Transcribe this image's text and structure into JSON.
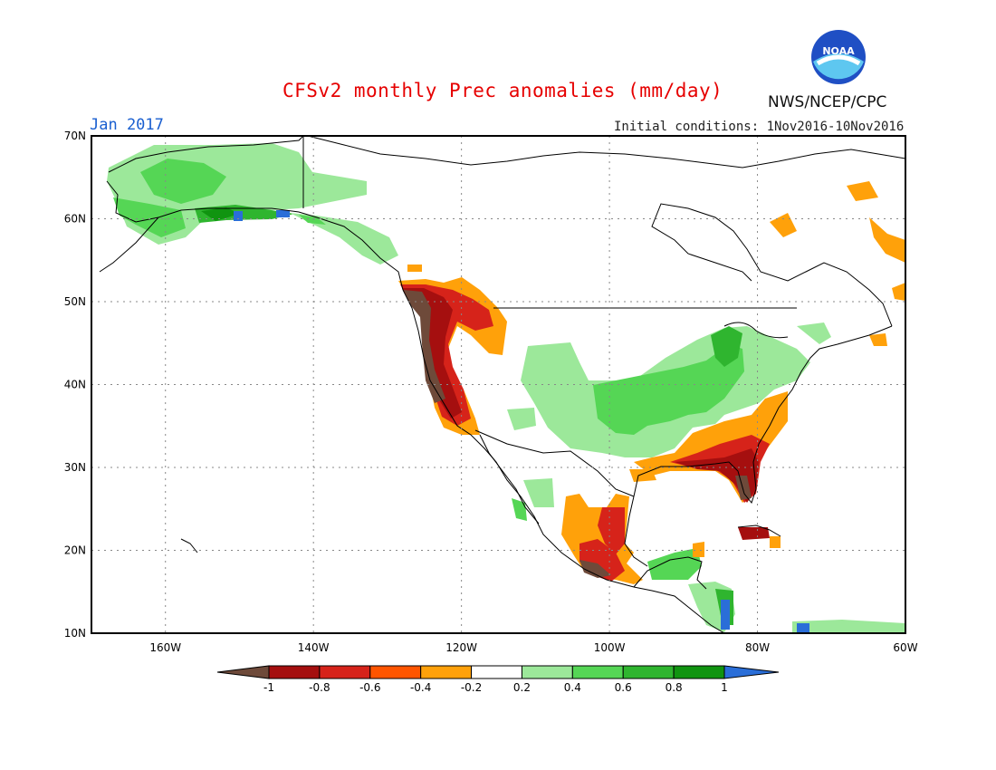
{
  "header": {
    "title": "CFSv2 monthly Prec anomalies (mm/day)",
    "month": "Jan 2017",
    "initial_conditions": "Initial conditions: 1Nov2016-10Nov2016",
    "agency": "NWS/NCEP/CPC",
    "logo_text": "NOAA"
  },
  "map": {
    "lat_labels": [
      "70N",
      "60N",
      "50N",
      "40N",
      "30N",
      "20N",
      "10N"
    ],
    "lon_labels": [
      "160W",
      "140W",
      "120W",
      "100W",
      "80W",
      "60W"
    ],
    "grid": "dotted"
  },
  "colorbar": {
    "tick_labels": [
      "-1",
      "-0.8",
      "-0.6",
      "-0.4",
      "-0.2",
      "0.2",
      "0.4",
      "0.6",
      "0.8",
      "1"
    ],
    "colors": [
      "#6e4a3a",
      "#a50f0f",
      "#d6231a",
      "#ff5500",
      "#ffa10a",
      "#ffffff",
      "#9ce89a",
      "#55d655",
      "#2fb52f",
      "#109410",
      "#2a6ed8"
    ]
  },
  "palette": {
    "brown": "#6e4a3a",
    "dark_red": "#a50f0f",
    "red": "#d6231a",
    "orange_red": "#ff5500",
    "orange": "#ffa10a",
    "light_green": "#9ce89a",
    "green": "#55d655",
    "mid_green": "#2fb52f",
    "dark_green": "#109410",
    "blue": "#2a6ed8"
  }
}
